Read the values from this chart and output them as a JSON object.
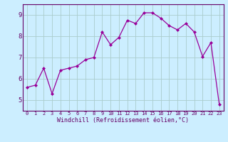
{
  "hours": [
    0,
    1,
    2,
    3,
    4,
    5,
    6,
    7,
    8,
    9,
    10,
    11,
    12,
    13,
    14,
    15,
    16,
    17,
    18,
    19,
    20,
    21,
    22,
    23
  ],
  "values": [
    5.6,
    5.7,
    6.5,
    5.3,
    6.4,
    6.5,
    6.6,
    6.9,
    7.0,
    8.2,
    7.6,
    7.95,
    8.75,
    8.6,
    9.1,
    9.1,
    8.85,
    8.5,
    8.3,
    8.6,
    8.2,
    7.05,
    7.7,
    4.8
  ],
  "line_color": "#990099",
  "marker": "D",
  "marker_size": 2,
  "bg_color": "#cceeff",
  "grid_color": "#aacccc",
  "xlabel": "Windchill (Refroidissement éolien,°C)",
  "xlabel_color": "#660066",
  "xlabel_fontsize": 6.0,
  "tick_color": "#660066",
  "xtick_fontsize": 5.0,
  "ytick_fontsize": 6.5,
  "ylim": [
    4.5,
    9.5
  ],
  "yticks": [
    5,
    6,
    7,
    8,
    9
  ],
  "border_color": "#660066",
  "linewidth": 0.9
}
